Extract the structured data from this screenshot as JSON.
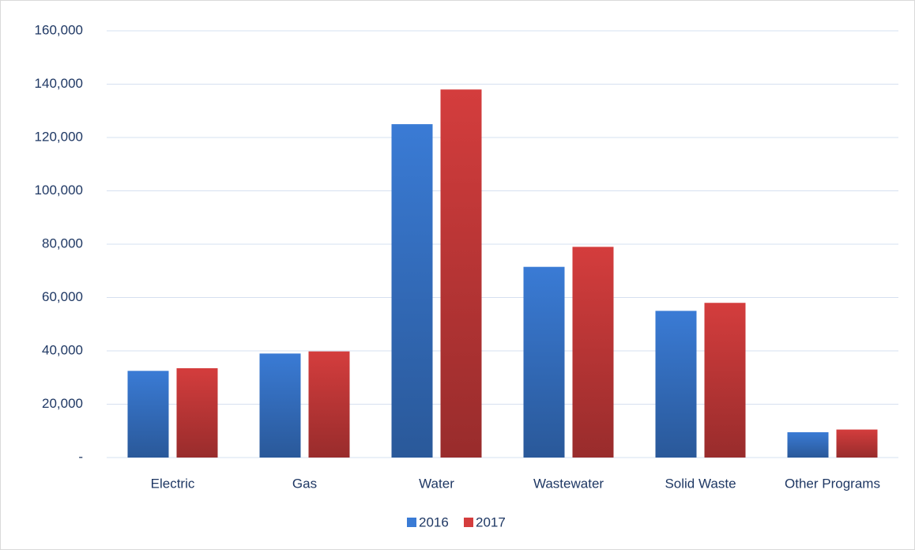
{
  "chart_data": {
    "type": "bar",
    "categories": [
      "Electric",
      "Gas",
      "Water",
      "Wastewater",
      "Solid Waste",
      "Other Programs"
    ],
    "series": [
      {
        "name": "2016",
        "color": "#3a7bd5",
        "values": [
          32500,
          39000,
          125000,
          71500,
          55000,
          9500
        ]
      },
      {
        "name": "2017",
        "color": "#d43d3d",
        "values": [
          33500,
          39800,
          138000,
          79000,
          58000,
          10500
        ]
      }
    ],
    "ylim": [
      0,
      160000
    ],
    "yticks": [
      {
        "value": 0,
        "label": "-"
      },
      {
        "value": 20000,
        "label": "20,000"
      },
      {
        "value": 40000,
        "label": "40,000"
      },
      {
        "value": 60000,
        "label": "60,000"
      },
      {
        "value": 80000,
        "label": "80,000"
      },
      {
        "value": 100000,
        "label": "100,000"
      },
      {
        "value": 120000,
        "label": "120,000"
      },
      {
        "value": 140000,
        "label": "140,000"
      },
      {
        "value": 160000,
        "label": "160,000"
      }
    ],
    "grid": true,
    "legend": "bottom"
  }
}
